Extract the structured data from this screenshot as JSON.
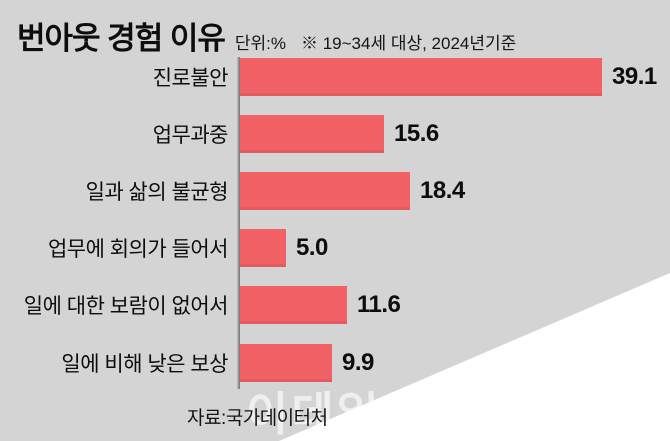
{
  "header": {
    "title": "번아웃 경험 이유",
    "unit_label": "단위:%",
    "note": "※ 19~34세 대상, 2024년기준"
  },
  "chart_data": {
    "type": "bar",
    "orientation": "horizontal",
    "title": "번아웃 경험 이유",
    "unit": "%",
    "categories": [
      "진로불안",
      "업무과중",
      "일과 삶의 불균형",
      "업무에 회의가 들어서",
      "일에 대한 보람이 없어서",
      "일에 비해 낮은 보상"
    ],
    "values": [
      39.1,
      15.6,
      18.4,
      5.0,
      11.6,
      9.9
    ],
    "value_labels": [
      "39.1",
      "15.6",
      "18.4",
      "5.0",
      "11.6",
      "9.9"
    ],
    "xlim": [
      0,
      42
    ],
    "grid": false,
    "legend": false,
    "value_label_position": "right-of-bar"
  },
  "footer": {
    "source": "자료:국가데이터처",
    "watermark": "이데일리"
  },
  "colors": {
    "background": "#d4d4d4",
    "bar": "#f26166",
    "wedge": "#ffffff",
    "text": "#111111",
    "axis_line": "#6e6e6e",
    "watermark": "rgba(255,255,255,0.62)"
  }
}
